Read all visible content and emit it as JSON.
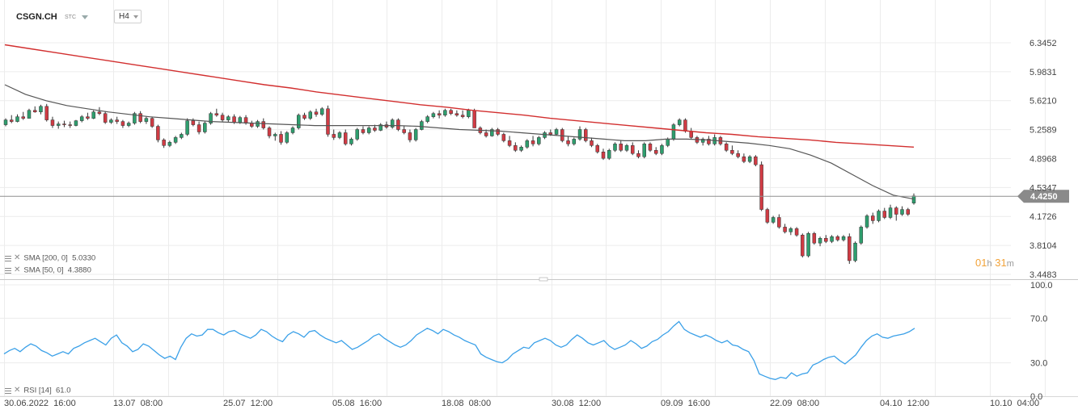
{
  "header": {
    "symbol": "CSGN.CH",
    "chart_type_label": "STC",
    "timeframe": "H4"
  },
  "indicators": {
    "sma200_label": "SMA [200, 0]",
    "sma200_value": "5.0330",
    "sma50_label": "SMA [50, 0]",
    "sma50_value": "4.3880",
    "rsi_label": "RSI [14]",
    "rsi_value": "61.0"
  },
  "countdown": {
    "hours": "01",
    "h": "h",
    "minutes": "31",
    "m": "m"
  },
  "colors": {
    "bull": "#2e9e6e",
    "bear": "#d03b44",
    "sma200": "#d22f2f",
    "sma50": "#555555",
    "rsi": "#3aa0e8",
    "last_price_bg": "#8a8a8a",
    "grid": "#ececec",
    "countdown": "#f2a33a"
  },
  "chart_data": [
    {
      "type": "candlestick",
      "title": "",
      "price_ticks": [
        "6.3452",
        "5.9831",
        "5.6210",
        "5.2589",
        "4.8968",
        "4.5347",
        "4.1726",
        "3.8104",
        "3.4483"
      ],
      "ylim": [
        3.4483,
        6.3452
      ],
      "last_price": "4.4250",
      "x_labels": [
        "30.06.2022  16:00",
        "13.07  08:00",
        "25.07  12:00",
        "05.08  16:00",
        "18.08  08:00",
        "30.08  12:00",
        "09.09  16:00",
        "22.09  08:00",
        "04.10  12:00",
        "10.10  04:00"
      ],
      "candles_count": 133,
      "candles": [
        [
          5.32,
          5.4,
          5.3,
          5.38
        ],
        [
          5.38,
          5.44,
          5.34,
          5.36
        ],
        [
          5.36,
          5.45,
          5.35,
          5.42
        ],
        [
          5.42,
          5.48,
          5.38,
          5.4
        ],
        [
          5.4,
          5.52,
          5.4,
          5.5
        ],
        [
          5.5,
          5.55,
          5.47,
          5.48
        ],
        [
          5.48,
          5.57,
          5.45,
          5.55
        ],
        [
          5.55,
          5.58,
          5.36,
          5.38
        ],
        [
          5.38,
          5.42,
          5.28,
          5.31
        ],
        [
          5.31,
          5.36,
          5.27,
          5.33
        ],
        [
          5.33,
          5.37,
          5.29,
          5.32
        ],
        [
          5.32,
          5.36,
          5.28,
          5.31
        ],
        [
          5.31,
          5.38,
          5.3,
          5.37
        ],
        [
          5.37,
          5.44,
          5.35,
          5.42
        ],
        [
          5.42,
          5.47,
          5.38,
          5.4
        ],
        [
          5.4,
          5.5,
          5.39,
          5.48
        ],
        [
          5.48,
          5.54,
          5.44,
          5.46
        ],
        [
          5.46,
          5.49,
          5.33,
          5.35
        ],
        [
          5.35,
          5.4,
          5.33,
          5.38
        ],
        [
          5.38,
          5.42,
          5.33,
          5.36
        ],
        [
          5.36,
          5.38,
          5.28,
          5.31
        ],
        [
          5.31,
          5.36,
          5.29,
          5.34
        ],
        [
          5.34,
          5.48,
          5.32,
          5.46
        ],
        [
          5.46,
          5.49,
          5.34,
          5.36
        ],
        [
          5.36,
          5.42,
          5.33,
          5.4
        ],
        [
          5.4,
          5.42,
          5.28,
          5.3
        ],
        [
          5.3,
          5.32,
          5.1,
          5.13
        ],
        [
          5.13,
          5.15,
          5.03,
          5.06
        ],
        [
          5.06,
          5.12,
          5.04,
          5.1
        ],
        [
          5.1,
          5.18,
          5.08,
          5.16
        ],
        [
          5.16,
          5.22,
          5.14,
          5.2
        ],
        [
          5.2,
          5.4,
          5.18,
          5.37
        ],
        [
          5.37,
          5.4,
          5.3,
          5.32
        ],
        [
          5.32,
          5.36,
          5.2,
          5.23
        ],
        [
          5.23,
          5.36,
          5.21,
          5.34
        ],
        [
          5.34,
          5.48,
          5.32,
          5.46
        ],
        [
          5.46,
          5.52,
          5.42,
          5.44
        ],
        [
          5.44,
          5.47,
          5.36,
          5.38
        ],
        [
          5.38,
          5.44,
          5.35,
          5.42
        ],
        [
          5.42,
          5.45,
          5.33,
          5.35
        ],
        [
          5.35,
          5.43,
          5.33,
          5.41
        ],
        [
          5.41,
          5.44,
          5.32,
          5.34
        ],
        [
          5.34,
          5.37,
          5.28,
          5.3
        ],
        [
          5.3,
          5.38,
          5.28,
          5.36
        ],
        [
          5.36,
          5.4,
          5.26,
          5.28
        ],
        [
          5.28,
          5.3,
          5.15,
          5.18
        ],
        [
          5.18,
          5.22,
          5.12,
          5.2
        ],
        [
          5.2,
          5.24,
          5.07,
          5.1
        ],
        [
          5.1,
          5.24,
          5.08,
          5.22
        ],
        [
          5.22,
          5.3,
          5.2,
          5.28
        ],
        [
          5.28,
          5.46,
          5.26,
          5.44
        ],
        [
          5.44,
          5.47,
          5.38,
          5.4
        ],
        [
          5.4,
          5.5,
          5.38,
          5.48
        ],
        [
          5.48,
          5.52,
          5.42,
          5.45
        ],
        [
          5.45,
          5.54,
          5.43,
          5.52
        ],
        [
          5.52,
          5.56,
          5.17,
          5.2
        ],
        [
          5.2,
          5.26,
          5.13,
          5.16
        ],
        [
          5.16,
          5.24,
          5.14,
          5.22
        ],
        [
          5.22,
          5.26,
          5.06,
          5.08
        ],
        [
          5.08,
          5.16,
          5.06,
          5.14
        ],
        [
          5.14,
          5.28,
          5.12,
          5.26
        ],
        [
          5.26,
          5.3,
          5.2,
          5.22
        ],
        [
          5.22,
          5.3,
          5.2,
          5.28
        ],
        [
          5.28,
          5.32,
          5.23,
          5.25
        ],
        [
          5.25,
          5.34,
          5.24,
          5.32
        ],
        [
          5.32,
          5.36,
          5.27,
          5.29
        ],
        [
          5.29,
          5.4,
          5.27,
          5.38
        ],
        [
          5.38,
          5.4,
          5.24,
          5.26
        ],
        [
          5.26,
          5.3,
          5.2,
          5.22
        ],
        [
          5.22,
          5.26,
          5.1,
          5.13
        ],
        [
          5.13,
          5.28,
          5.11,
          5.26
        ],
        [
          5.26,
          5.38,
          5.25,
          5.36
        ],
        [
          5.36,
          5.44,
          5.34,
          5.42
        ],
        [
          5.42,
          5.48,
          5.4,
          5.46
        ],
        [
          5.46,
          5.5,
          5.4,
          5.44
        ],
        [
          5.44,
          5.52,
          5.42,
          5.5
        ],
        [
          5.5,
          5.52,
          5.44,
          5.46
        ],
        [
          5.46,
          5.5,
          5.42,
          5.44
        ],
        [
          5.44,
          5.5,
          5.4,
          5.42
        ],
        [
          5.42,
          5.52,
          5.4,
          5.5
        ],
        [
          5.5,
          5.52,
          5.3,
          5.28
        ],
        [
          5.28,
          5.3,
          5.2,
          5.22
        ],
        [
          5.22,
          5.26,
          5.16,
          5.18
        ],
        [
          5.18,
          5.28,
          5.17,
          5.26
        ],
        [
          5.26,
          5.28,
          5.18,
          5.2
        ],
        [
          5.2,
          5.22,
          5.1,
          5.12
        ],
        [
          5.12,
          5.18,
          5.04,
          5.06
        ],
        [
          5.06,
          5.1,
          4.98,
          5.0
        ],
        [
          5.0,
          5.06,
          4.98,
          5.04
        ],
        [
          5.04,
          5.14,
          5.02,
          5.12
        ],
        [
          5.12,
          5.18,
          5.05,
          5.08
        ],
        [
          5.08,
          5.18,
          5.06,
          5.16
        ],
        [
          5.16,
          5.24,
          5.14,
          5.22
        ],
        [
          5.22,
          5.26,
          5.18,
          5.2
        ],
        [
          5.2,
          5.28,
          5.18,
          5.26
        ],
        [
          5.26,
          5.28,
          5.1,
          5.12
        ],
        [
          5.12,
          5.18,
          5.05,
          5.08
        ],
        [
          5.08,
          5.16,
          5.06,
          5.14
        ],
        [
          5.14,
          5.3,
          5.12,
          5.26
        ],
        [
          5.26,
          5.28,
          5.1,
          5.12
        ],
        [
          5.12,
          5.16,
          5.04,
          5.06
        ],
        [
          5.06,
          5.08,
          4.96,
          4.98
        ],
        [
          4.98,
          5.02,
          4.88,
          4.9
        ],
        [
          4.9,
          5.02,
          4.88,
          5.0
        ],
        [
          5.0,
          5.1,
          4.98,
          5.08
        ]
      ],
      "candles_extra": [
        [
          5.08,
          5.12,
          4.98,
          5.0
        ],
        [
          5.0,
          5.08,
          4.98,
          5.06
        ],
        [
          5.06,
          5.1,
          4.94,
          4.96
        ],
        [
          4.96,
          5.0,
          4.9,
          4.92
        ],
        [
          4.92,
          5.1,
          4.9,
          5.08
        ],
        [
          5.08,
          5.1,
          4.98,
          5.0
        ],
        [
          5.0,
          5.04,
          4.94,
          4.96
        ],
        [
          4.96,
          5.08,
          4.94,
          5.06
        ],
        [
          5.06,
          5.16,
          5.04,
          5.14
        ],
        [
          5.14,
          5.34,
          5.12,
          5.32
        ],
        [
          5.32,
          5.4,
          5.3,
          5.38
        ],
        [
          5.38,
          5.4,
          5.22,
          5.24
        ],
        [
          5.24,
          5.28,
          5.14,
          5.16
        ],
        [
          5.16,
          5.18,
          5.08,
          5.1
        ],
        [
          5.1,
          5.16,
          5.06,
          5.14
        ],
        [
          5.14,
          5.18,
          5.06,
          5.08
        ],
        [
          5.08,
          5.2,
          5.06,
          5.16
        ],
        [
          5.16,
          5.18,
          5.06,
          5.08
        ],
        [
          5.08,
          5.1,
          4.98,
          5.0
        ],
        [
          5.0,
          5.06,
          4.94,
          4.96
        ],
        [
          4.96,
          5.0,
          4.9,
          4.92
        ],
        [
          4.92,
          4.96,
          4.84,
          4.86
        ],
        [
          4.86,
          4.94,
          4.84,
          4.92
        ],
        [
          4.92,
          4.94,
          4.8,
          4.82
        ],
        [
          4.82,
          4.86,
          4.24,
          4.26
        ],
        [
          4.26,
          4.28,
          4.08,
          4.1
        ],
        [
          4.1,
          4.18,
          4.08,
          4.16
        ],
        [
          4.16,
          4.2,
          4.02,
          4.04
        ],
        [
          4.04,
          4.08,
          3.96,
          3.98
        ],
        [
          3.98,
          4.04,
          3.94,
          4.02
        ],
        [
          4.02,
          4.04,
          3.92,
          3.94
        ],
        [
          3.94,
          3.96,
          3.66,
          3.68
        ],
        [
          3.68,
          3.98,
          3.66,
          3.96
        ],
        [
          3.96,
          3.98,
          3.82,
          3.84
        ],
        [
          3.84,
          3.92,
          3.8,
          3.9
        ],
        [
          3.9,
          3.94,
          3.84,
          3.86
        ],
        [
          3.86,
          3.94,
          3.84,
          3.92
        ],
        [
          3.92,
          3.94,
          3.86,
          3.88
        ],
        [
          3.88,
          3.94,
          3.86,
          3.92
        ],
        [
          3.92,
          3.96,
          3.58,
          3.62
        ],
        [
          3.62,
          3.86,
          3.6,
          3.84
        ],
        [
          3.84,
          4.06,
          3.82,
          4.04
        ],
        [
          4.04,
          4.2,
          4.02,
          4.18
        ],
        [
          4.18,
          4.22,
          4.08,
          4.12
        ],
        [
          4.12,
          4.26,
          4.1,
          4.24
        ],
        [
          4.24,
          4.28,
          4.14,
          4.16
        ],
        [
          4.16,
          4.32,
          4.14,
          4.28
        ],
        [
          4.28,
          4.3,
          4.12,
          4.2
        ],
        [
          4.2,
          4.3,
          4.18,
          4.26
        ],
        [
          4.26,
          4.28,
          4.18,
          4.2
        ]
      ],
      "last_candle": [
        4.34,
        4.46,
        4.32,
        4.43
      ],
      "sma200": [
        6.32,
        6.27,
        6.22,
        6.17,
        6.12,
        6.07,
        6.02,
        5.97,
        5.92,
        5.87,
        5.82,
        5.78,
        5.73,
        5.69,
        5.65,
        5.61,
        5.57,
        5.54,
        5.5,
        5.47,
        5.44,
        5.4,
        5.37,
        5.34,
        5.31,
        5.28,
        5.25,
        5.22,
        5.2,
        5.17,
        5.15,
        5.13,
        5.1,
        5.08,
        5.06,
        5.04
      ],
      "sma50": [
        5.82,
        5.7,
        5.62,
        5.56,
        5.52,
        5.48,
        5.45,
        5.42,
        5.4,
        5.38,
        5.36,
        5.35,
        5.34,
        5.33,
        5.32,
        5.31,
        5.31,
        5.31,
        5.31,
        5.31,
        5.3,
        5.28,
        5.26,
        5.25,
        5.24,
        5.22,
        5.2,
        5.18,
        5.16,
        5.14,
        5.12,
        5.12,
        5.14,
        5.14,
        5.13,
        5.11,
        5.09,
        5.06,
        5.02,
        4.94,
        4.84,
        4.7,
        4.56,
        4.44,
        4.39
      ]
    },
    {
      "type": "line",
      "title": "",
      "name": "RSI [14]",
      "y_ticks": [
        "100.0",
        "70.0",
        "30.0",
        "0.0"
      ],
      "ylim": [
        0,
        100
      ],
      "values": [
        38,
        41,
        43,
        40,
        44,
        47,
        45,
        41,
        39,
        36,
        38,
        40,
        38,
        43,
        45,
        48,
        50,
        52,
        49,
        46,
        52,
        55,
        48,
        45,
        40,
        42,
        47,
        45,
        41,
        37,
        34,
        36,
        33,
        44,
        52,
        56,
        54,
        55,
        60,
        60,
        57,
        55,
        58,
        59,
        56,
        54,
        52,
        55,
        60,
        58,
        54,
        51,
        49,
        55,
        58,
        56,
        53,
        58,
        59,
        55,
        52,
        50,
        48,
        50,
        46,
        42,
        44,
        47,
        50,
        54,
        56,
        52,
        49,
        46,
        44,
        46,
        50,
        55,
        58,
        61,
        59,
        56,
        60,
        58,
        55,
        53,
        50,
        48,
        46,
        38,
        35,
        33,
        31,
        30,
        33,
        38,
        41,
        44,
        43,
        48,
        50,
        52,
        50,
        46,
        44,
        46,
        51,
        55,
        52,
        48,
        46,
        48,
        50,
        45,
        42,
        44,
        46,
        50,
        47,
        43,
        45,
        49,
        51,
        55,
        58,
        63,
        67,
        60,
        57,
        55,
        53,
        55,
        53,
        50,
        48,
        50,
        46,
        45,
        42,
        40,
        32,
        20,
        18,
        16,
        15,
        17,
        16,
        21,
        18,
        20,
        21,
        28,
        30,
        33,
        35,
        36,
        32,
        29,
        33,
        37,
        44,
        50,
        54,
        56,
        53,
        52,
        54,
        55,
        56,
        58,
        61
      ],
      "rsi_tail_values": [
        48,
        50,
        51,
        53,
        55,
        57,
        59,
        56,
        54,
        52,
        50,
        48,
        46,
        44,
        46,
        48,
        52,
        55,
        58,
        60,
        61
      ]
    }
  ]
}
